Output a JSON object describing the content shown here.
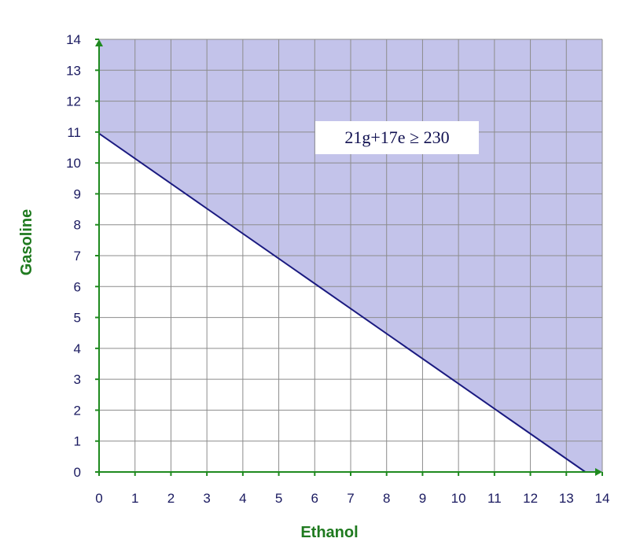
{
  "chart_data": {
    "type": "inequality-region",
    "xlabel": "Ethanol",
    "ylabel": "Gasoline",
    "xlim": [
      0,
      14
    ],
    "ylim": [
      0,
      14
    ],
    "x_ticks": [
      "0",
      "1",
      "2",
      "3",
      "4",
      "5",
      "6",
      "7",
      "8",
      "9",
      "10",
      "11",
      "12",
      "13",
      "14"
    ],
    "y_ticks": [
      "0",
      "1",
      "2",
      "3",
      "4",
      "5",
      "6",
      "7",
      "8",
      "9",
      "10",
      "11",
      "12",
      "13",
      "14"
    ],
    "grid": true,
    "boundary_line": {
      "points": [
        {
          "x": 0,
          "y": 10.952
        },
        {
          "x": 13.529,
          "y": 0
        }
      ]
    },
    "shaded_region": "above-line",
    "inequality_label": "21g+17e ≥ 230",
    "colors": {
      "region_fill": "#c3c3ea",
      "line": "#1a1a80",
      "axis": "#1f8a1f",
      "axis_title": "#1f7a1f",
      "grid": "#8c8c8c",
      "tick_text": "#1a1a60"
    }
  }
}
